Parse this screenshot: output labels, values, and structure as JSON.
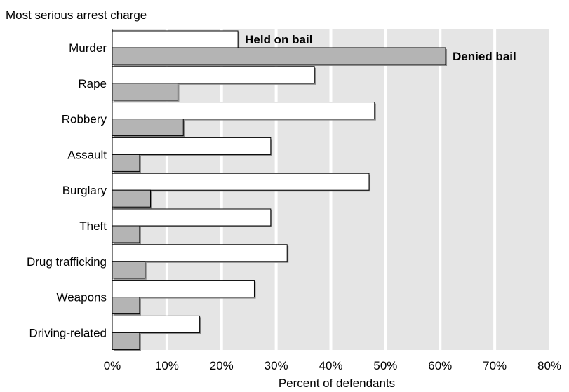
{
  "chart_data": {
    "type": "bar",
    "orientation": "horizontal",
    "title": "Most serious arrest charge",
    "xlabel": "Percent of defendants",
    "ylabel": "Most serious arrest charge",
    "xlim": [
      0,
      80
    ],
    "x_ticks": [
      0,
      10,
      20,
      30,
      40,
      50,
      60,
      70,
      80
    ],
    "x_tick_labels": [
      "0%",
      "10%",
      "20%",
      "30%",
      "40%",
      "50%",
      "60%",
      "70%",
      "80%"
    ],
    "grid": true,
    "categories": [
      "Murder",
      "Rape",
      "Robbery",
      "Assault",
      "Burglary",
      "Theft",
      "Drug trafficking",
      "Weapons",
      "Driving-related"
    ],
    "series": [
      {
        "name": "Held on bail",
        "values": [
          23,
          37,
          48,
          29,
          47,
          29,
          32,
          26,
          16
        ],
        "color": "#ffffff"
      },
      {
        "name": "Denied bail",
        "values": [
          61,
          12,
          13,
          5,
          7,
          5,
          6,
          5,
          5
        ],
        "color": "#b4b4b4"
      }
    ]
  },
  "colors": {
    "plot_background": "#e5e5e5",
    "gridline": "#ffffff",
    "bar_outline": "#000000",
    "bar_shadow": "#8a8a8a"
  }
}
